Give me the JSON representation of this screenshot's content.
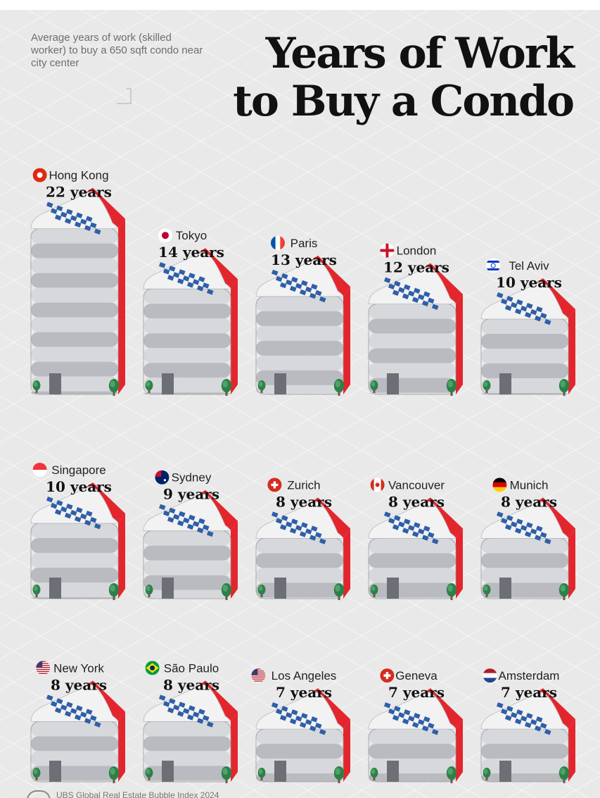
{
  "subtitle": "Average years of work (skilled worker) to buy a 650 sqft condo near city center",
  "title_line1": "Years of Work",
  "title_line2": "to Buy a Condo",
  "source": "UBS Global Real Estate Bubble Index 2024",
  "colors": {
    "accent_red": "#e3262d",
    "window_blue": "#2f5fa6",
    "building_gray": "#c9cbcf"
  },
  "chart_data": {
    "type": "bar",
    "unit": "years",
    "categories": [
      "Hong Kong",
      "Tokyo",
      "Paris",
      "London",
      "Tel Aviv",
      "Singapore",
      "Sydney",
      "Zurich",
      "Vancouver",
      "Munich",
      "New York",
      "São Paulo",
      "Los Angeles",
      "Geneva",
      "Amsterdam"
    ],
    "values": [
      22,
      14,
      13,
      12,
      10,
      10,
      9,
      8,
      8,
      8,
      8,
      8,
      7,
      7,
      7
    ],
    "value_labels": [
      "22 years",
      "14 years",
      "13 years",
      "12 years",
      "10 years",
      "10 years",
      "9 years",
      "8 years",
      "8 years",
      "8 years",
      "8 years",
      "8 years",
      "7 years",
      "7 years",
      "7 years"
    ],
    "flags": [
      "hong-kong-flag-icon",
      "japan-flag-icon",
      "france-flag-icon",
      "england-flag-icon",
      "israel-flag-icon",
      "singapore-flag-icon",
      "australia-flag-icon",
      "switzerland-flag-icon",
      "canada-flag-icon",
      "germany-flag-icon",
      "usa-flag-icon",
      "brazil-flag-icon",
      "usa-flag-icon",
      "switzerland-flag-icon",
      "netherlands-flag-icon"
    ]
  }
}
